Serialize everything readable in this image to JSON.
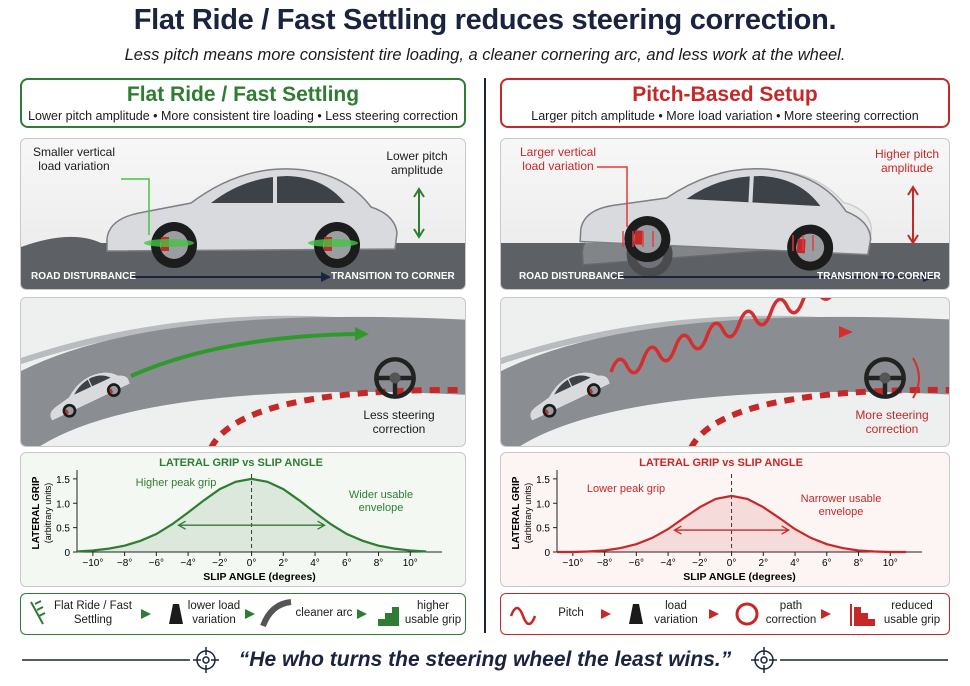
{
  "header": {
    "title": "Flat Ride / Fast Settling reduces steering correction.",
    "subtitle": "Less pitch means more consistent tire loading, a cleaner cornering arc, and less work at the wheel."
  },
  "panels": [
    {
      "heading": "Flat Ride / Fast Settling",
      "subheading": "Lower pitch amplitude • More consistent tire loading • Less steering correction",
      "callout_left": "Smaller vertical load variation",
      "callout_right": "Lower pitch amplitude",
      "road_left": "ROAD DISTURBANCE",
      "road_right": "TRANSITION TO CORNER",
      "steering": "Less steering correction",
      "flow": [
        "Flat Ride / Fast Settling",
        "lower load variation",
        "cleaner arc",
        "higher usable grip"
      ]
    },
    {
      "heading": "Pitch-Based Setup",
      "subheading": "Larger pitch amplitude • More load variation • More steering correction",
      "callout_left": "Larger vertical load variation",
      "callout_right": "Higher pitch amplitude",
      "road_left": "ROAD DISTURBANCE",
      "road_right": "TRANSITION TO CORNER",
      "steering": "More steering correction",
      "flow": [
        "Pitch",
        "load variation",
        "path correction",
        "reduced usable grip"
      ]
    }
  ],
  "chart_data": [
    {
      "type": "line",
      "title": "LATERAL GRIP vs SLIP ANGLE",
      "x_label": "SLIP ANGLE (degrees)",
      "y_label": "LATERAL GRIP",
      "y_sublabel": "(arbitrary units)",
      "annotations": [
        "Higher peak grip",
        "Wider usable envelope"
      ],
      "x": [
        -11,
        -10,
        -9,
        -8,
        -7,
        -6,
        -5,
        -4,
        -3,
        -2,
        -1,
        0,
        1,
        2,
        3,
        4,
        5,
        6,
        7,
        8,
        9,
        10,
        11
      ],
      "series": [
        {
          "color": "#2e7d32",
          "values": [
            0.01,
            0.03,
            0.07,
            0.13,
            0.23,
            0.37,
            0.57,
            0.81,
            1.06,
            1.29,
            1.44,
            1.5,
            1.44,
            1.29,
            1.06,
            0.81,
            0.57,
            0.37,
            0.23,
            0.13,
            0.07,
            0.03,
            0.01
          ]
        }
      ],
      "xlim": [
        -11,
        12
      ],
      "ylim": [
        0,
        1.6
      ],
      "xticks": [
        {
          "value": -10,
          "label": "−10°"
        },
        {
          "value": -8,
          "label": "−8°"
        },
        {
          "value": -6,
          "label": "−6°"
        },
        {
          "value": -4,
          "label": "−4°"
        },
        {
          "value": -2,
          "label": "−2°"
        },
        {
          "value": 0,
          "label": "0°"
        },
        {
          "value": 2,
          "label": "2°"
        },
        {
          "value": 4,
          "label": "4°"
        },
        {
          "value": 6,
          "label": "6°"
        },
        {
          "value": 8,
          "label": "8°"
        },
        {
          "value": 10,
          "label": "10°"
        }
      ],
      "yticks": [
        0,
        0.5,
        {
          "value": 1,
          "label": "1.0"
        },
        1.5
      ]
    },
    {
      "type": "line",
      "title": "LATERAL GRIP vs SLIP ANGLE",
      "x_label": "SLIP ANGLE (degrees)",
      "y_label": "LATERAL GRIP",
      "y_sublabel": "(arbitrary units)",
      "annotations": [
        "Lower peak grip",
        "Narrower usable envelope"
      ],
      "x": [
        -11,
        -10,
        -9,
        -8,
        -7,
        -6,
        -5,
        -4,
        -3,
        -2,
        -1,
        0,
        1,
        2,
        3,
        4,
        5,
        6,
        7,
        8,
        9,
        10,
        11
      ],
      "series": [
        {
          "color": "#c62828",
          "values": [
            0,
            0,
            0.01,
            0.03,
            0.08,
            0.16,
            0.29,
            0.47,
            0.7,
            0.92,
            1.09,
            1.15,
            1.09,
            0.92,
            0.7,
            0.47,
            0.29,
            0.16,
            0.08,
            0.03,
            0.01,
            0,
            0
          ]
        }
      ],
      "xlim": [
        -11,
        12
      ],
      "ylim": [
        0,
        1.6
      ],
      "xticks": [
        {
          "value": -10,
          "label": "−10°"
        },
        {
          "value": -8,
          "label": "−8°"
        },
        {
          "value": -6,
          "label": "−6°"
        },
        {
          "value": -4,
          "label": "−4°"
        },
        {
          "value": -2,
          "label": "−2°"
        },
        {
          "value": 0,
          "label": "0°"
        },
        {
          "value": 2,
          "label": "2°"
        },
        {
          "value": 4,
          "label": "4°"
        },
        {
          "value": 6,
          "label": "6°"
        },
        {
          "value": 8,
          "label": "8°"
        },
        {
          "value": 10,
          "label": "10°"
        }
      ],
      "yticks": [
        0,
        0.5,
        {
          "value": 1,
          "label": "1.0"
        },
        1.5
      ]
    }
  ],
  "quote": "“He who turns the steering wheel the least wins.”"
}
